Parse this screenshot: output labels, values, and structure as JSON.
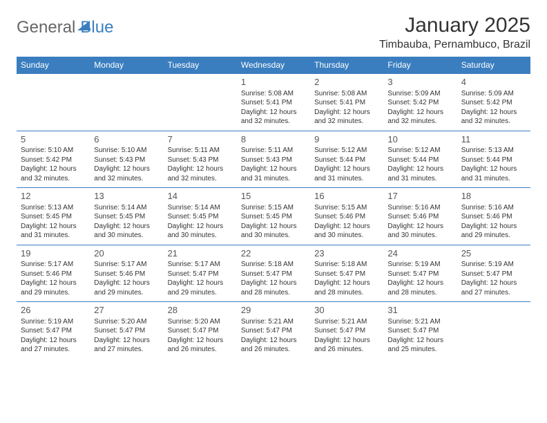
{
  "logo": {
    "word1": "General",
    "word2": "Blue"
  },
  "title": "January 2025",
  "location": "Timbauba, Pernambuco, Brazil",
  "header_bg": "#3a7ebf",
  "header_fg": "#ffffff",
  "border_color": "#3a7ebf",
  "text_color": "#333333",
  "day_headers": [
    "Sunday",
    "Monday",
    "Tuesday",
    "Wednesday",
    "Thursday",
    "Friday",
    "Saturday"
  ],
  "weeks": [
    [
      null,
      null,
      null,
      {
        "n": "1",
        "sr": "5:08 AM",
        "ss": "5:41 PM",
        "dl": "12 hours and 32 minutes."
      },
      {
        "n": "2",
        "sr": "5:08 AM",
        "ss": "5:41 PM",
        "dl": "12 hours and 32 minutes."
      },
      {
        "n": "3",
        "sr": "5:09 AM",
        "ss": "5:42 PM",
        "dl": "12 hours and 32 minutes."
      },
      {
        "n": "4",
        "sr": "5:09 AM",
        "ss": "5:42 PM",
        "dl": "12 hours and 32 minutes."
      }
    ],
    [
      {
        "n": "5",
        "sr": "5:10 AM",
        "ss": "5:42 PM",
        "dl": "12 hours and 32 minutes."
      },
      {
        "n": "6",
        "sr": "5:10 AM",
        "ss": "5:43 PM",
        "dl": "12 hours and 32 minutes."
      },
      {
        "n": "7",
        "sr": "5:11 AM",
        "ss": "5:43 PM",
        "dl": "12 hours and 32 minutes."
      },
      {
        "n": "8",
        "sr": "5:11 AM",
        "ss": "5:43 PM",
        "dl": "12 hours and 31 minutes."
      },
      {
        "n": "9",
        "sr": "5:12 AM",
        "ss": "5:44 PM",
        "dl": "12 hours and 31 minutes."
      },
      {
        "n": "10",
        "sr": "5:12 AM",
        "ss": "5:44 PM",
        "dl": "12 hours and 31 minutes."
      },
      {
        "n": "11",
        "sr": "5:13 AM",
        "ss": "5:44 PM",
        "dl": "12 hours and 31 minutes."
      }
    ],
    [
      {
        "n": "12",
        "sr": "5:13 AM",
        "ss": "5:45 PM",
        "dl": "12 hours and 31 minutes."
      },
      {
        "n": "13",
        "sr": "5:14 AM",
        "ss": "5:45 PM",
        "dl": "12 hours and 30 minutes."
      },
      {
        "n": "14",
        "sr": "5:14 AM",
        "ss": "5:45 PM",
        "dl": "12 hours and 30 minutes."
      },
      {
        "n": "15",
        "sr": "5:15 AM",
        "ss": "5:45 PM",
        "dl": "12 hours and 30 minutes."
      },
      {
        "n": "16",
        "sr": "5:15 AM",
        "ss": "5:46 PM",
        "dl": "12 hours and 30 minutes."
      },
      {
        "n": "17",
        "sr": "5:16 AM",
        "ss": "5:46 PM",
        "dl": "12 hours and 30 minutes."
      },
      {
        "n": "18",
        "sr": "5:16 AM",
        "ss": "5:46 PM",
        "dl": "12 hours and 29 minutes."
      }
    ],
    [
      {
        "n": "19",
        "sr": "5:17 AM",
        "ss": "5:46 PM",
        "dl": "12 hours and 29 minutes."
      },
      {
        "n": "20",
        "sr": "5:17 AM",
        "ss": "5:46 PM",
        "dl": "12 hours and 29 minutes."
      },
      {
        "n": "21",
        "sr": "5:17 AM",
        "ss": "5:47 PM",
        "dl": "12 hours and 29 minutes."
      },
      {
        "n": "22",
        "sr": "5:18 AM",
        "ss": "5:47 PM",
        "dl": "12 hours and 28 minutes."
      },
      {
        "n": "23",
        "sr": "5:18 AM",
        "ss": "5:47 PM",
        "dl": "12 hours and 28 minutes."
      },
      {
        "n": "24",
        "sr": "5:19 AM",
        "ss": "5:47 PM",
        "dl": "12 hours and 28 minutes."
      },
      {
        "n": "25",
        "sr": "5:19 AM",
        "ss": "5:47 PM",
        "dl": "12 hours and 27 minutes."
      }
    ],
    [
      {
        "n": "26",
        "sr": "5:19 AM",
        "ss": "5:47 PM",
        "dl": "12 hours and 27 minutes."
      },
      {
        "n": "27",
        "sr": "5:20 AM",
        "ss": "5:47 PM",
        "dl": "12 hours and 27 minutes."
      },
      {
        "n": "28",
        "sr": "5:20 AM",
        "ss": "5:47 PM",
        "dl": "12 hours and 26 minutes."
      },
      {
        "n": "29",
        "sr": "5:21 AM",
        "ss": "5:47 PM",
        "dl": "12 hours and 26 minutes."
      },
      {
        "n": "30",
        "sr": "5:21 AM",
        "ss": "5:47 PM",
        "dl": "12 hours and 26 minutes."
      },
      {
        "n": "31",
        "sr": "5:21 AM",
        "ss": "5:47 PM",
        "dl": "12 hours and 25 minutes."
      },
      null
    ]
  ],
  "labels": {
    "sunrise": "Sunrise:",
    "sunset": "Sunset:",
    "daylight": "Daylight:"
  }
}
